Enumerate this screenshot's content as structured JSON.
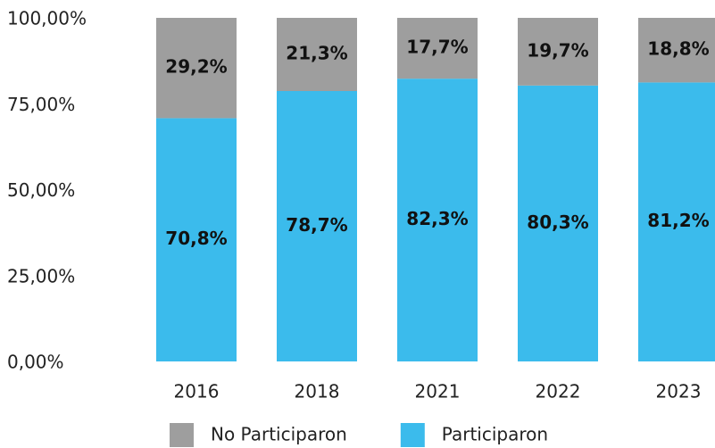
{
  "chart_data": {
    "type": "stacked_bar",
    "categories": [
      "2016",
      "2018",
      "2021",
      "2022",
      "2023"
    ],
    "series": [
      {
        "name": "No Participaron",
        "color": "#9e9e9e",
        "values": [
          29.2,
          21.3,
          17.7,
          19.7,
          18.8
        ],
        "value_labels": [
          "29,2%",
          "21,3%",
          "17,7%",
          "19,7%",
          "18,8%"
        ]
      },
      {
        "name": "Participaron",
        "color": "#3bbbec",
        "values": [
          70.8,
          78.7,
          82.3,
          80.3,
          81.2
        ],
        "value_labels": [
          "70,8%",
          "78,7%",
          "82,3%",
          "80,3%",
          "81,2%"
        ]
      }
    ],
    "ylim": [
      0,
      100
    ],
    "yticks": [
      {
        "value": 0,
        "label": "0,00%"
      },
      {
        "value": 25,
        "label": "25,00%"
      },
      {
        "value": 50,
        "label": "50,00%"
      },
      {
        "value": 75,
        "label": "75,00%"
      },
      {
        "value": 100,
        "label": "100,00%"
      }
    ],
    "grid": false
  }
}
